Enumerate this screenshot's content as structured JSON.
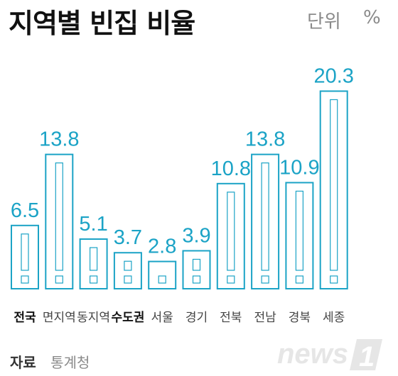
{
  "title": "지역별 빈집 비율",
  "unit_label": "단위",
  "unit_symbol": "%",
  "source": {
    "label": "자료",
    "value": "통계청"
  },
  "logo": {
    "text": "news",
    "mark": "1"
  },
  "colors": {
    "bar": "#1ba3c6",
    "value": "#1ba3c6",
    "text": "#444444"
  },
  "chart_data": {
    "type": "bar",
    "categories": [
      "전국",
      "면지역",
      "동지역",
      "수도권",
      "서울",
      "경기",
      "전북",
      "전남",
      "경북",
      "세종"
    ],
    "values": [
      6.5,
      13.8,
      5.1,
      3.7,
      2.8,
      3.9,
      10.8,
      13.8,
      10.9,
      20.3
    ],
    "value_labels": [
      "6.5",
      "13.8",
      "5.1",
      "3.7",
      "2.8",
      "3.9",
      "10.8",
      "13.8",
      "10.9",
      "20.3"
    ],
    "bold_categories": [
      "전국",
      "수도권"
    ],
    "ylim": [
      0,
      21.5
    ],
    "grid": false
  }
}
